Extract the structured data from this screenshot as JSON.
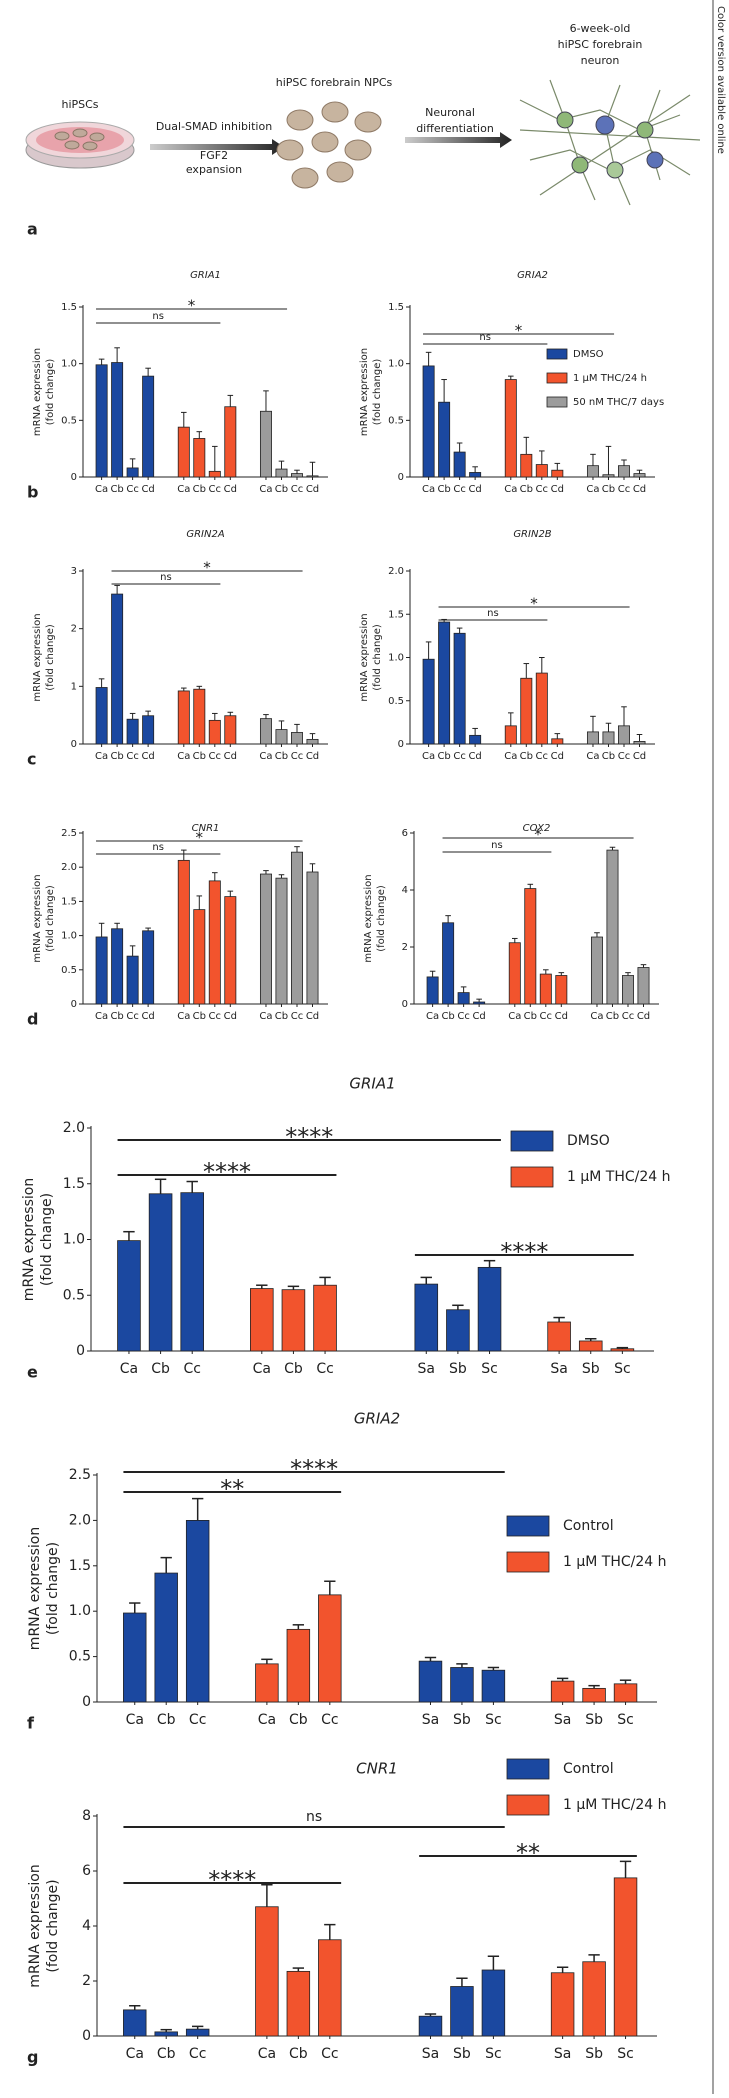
{
  "side_note": "Color version available online",
  "diagram": {
    "panel": "a",
    "stem_cells": "hiPSCs",
    "step1_line1": "Dual-SMAD inhibition",
    "step1_line2": "FGF2",
    "step1_line3": "expansion",
    "npcs": "hiPSC forebrain NPCs",
    "step2_line1": "Neuronal",
    "step2_line2": "differentiation",
    "neuron_line1": "6-week-old",
    "neuron_line2": "hiPSC forebrain",
    "neuron_line3": "neuron"
  },
  "chart_data": [
    {
      "type": "bar",
      "panel": "b",
      "title": "GRIA1",
      "y_label": [
        "mRNA expression",
        "(fold change)"
      ],
      "category_groups": [
        [
          "Ca",
          "Cb",
          "Cc",
          "Cd"
        ]
      ],
      "series": [
        {
          "name": "DMSO",
          "color": "#1b48a0",
          "values": [
            [
              0.99,
              1.01,
              0.08,
              0.89
            ]
          ],
          "errors": [
            [
              0.05,
              0.13,
              0.08,
              0.07
            ]
          ]
        },
        {
          "name": "1 μM THC/24 h",
          "color": "#f2542d",
          "values": [
            [
              0.44,
              0.34,
              0.05,
              0.62
            ]
          ],
          "errors": [
            [
              0.13,
              0.06,
              0.22,
              0.1
            ]
          ]
        },
        {
          "name": "50 nM THC/7 days",
          "color": "#9c9c9c",
          "values": [
            [
              0.58,
              0.07,
              0.03,
              0.01
            ]
          ],
          "errors": [
            [
              0.18,
              0.07,
              0.03,
              0.12
            ]
          ]
        }
      ],
      "ylim": [
        0,
        1.5
      ],
      "yticks": [
        0,
        0.5,
        {
          "value": 1,
          "label": "1.0"
        },
        1.5
      ],
      "brackets": [
        "ns",
        "*"
      ],
      "legend": false
    },
    {
      "type": "bar",
      "title": "GRIA2",
      "y_label": [
        "mRNA expression",
        "(fold change)"
      ],
      "category_groups": [
        [
          "Ca",
          "Cb",
          "Cc",
          "Cd"
        ]
      ],
      "series": [
        {
          "name": "DMSO",
          "color": "#1b48a0",
          "values": [
            [
              0.98,
              0.66,
              0.22,
              0.04
            ]
          ],
          "errors": [
            [
              0.12,
              0.2,
              0.08,
              0.05
            ]
          ]
        },
        {
          "name": "1 μM THC/24 h",
          "color": "#f2542d",
          "values": [
            [
              0.86,
              0.2,
              0.11,
              0.06
            ]
          ],
          "errors": [
            [
              0.03,
              0.15,
              0.12,
              0.06
            ]
          ]
        },
        {
          "name": "50 nM THC/7 days",
          "color": "#9c9c9c",
          "values": [
            [
              0.1,
              0.02,
              0.1,
              0.03
            ]
          ],
          "errors": [
            [
              0.1,
              0.25,
              0.05,
              0.03
            ]
          ]
        }
      ],
      "ylim": [
        0,
        1.5
      ],
      "yticks": [
        0,
        0.5,
        {
          "value": 1,
          "label": "1.0"
        },
        1.5
      ],
      "brackets": [
        "ns",
        "*"
      ],
      "legend": true
    },
    {
      "type": "bar",
      "panel": "c",
      "title": "GRIN2A",
      "y_label": [
        "mRNA expression",
        "(fold change)"
      ],
      "category_groups": [
        [
          "Ca",
          "Cb",
          "Cc",
          "Cd"
        ]
      ],
      "series": [
        {
          "name": "DMSO",
          "color": "#1b48a0",
          "values": [
            [
              0.98,
              2.6,
              0.43,
              0.49
            ]
          ],
          "errors": [
            [
              0.15,
              0.15,
              0.1,
              0.08
            ]
          ]
        },
        {
          "name": "1 μM THC/24 h",
          "color": "#f2542d",
          "values": [
            [
              0.92,
              0.95,
              0.41,
              0.49
            ]
          ],
          "errors": [
            [
              0.05,
              0.05,
              0.12,
              0.06
            ]
          ]
        },
        {
          "name": "50 nM THC/7 days",
          "color": "#9c9c9c",
          "values": [
            [
              0.44,
              0.25,
              0.2,
              0.08
            ]
          ],
          "errors": [
            [
              0.07,
              0.15,
              0.14,
              0.1
            ]
          ]
        }
      ],
      "ylim": [
        0,
        3
      ],
      "yticks": [
        0,
        1,
        2,
        3
      ],
      "brackets": [
        "ns",
        "*"
      ],
      "legend": false
    },
    {
      "type": "bar",
      "title": "GRIN2B",
      "y_label": [
        "mRNA expression",
        "(fold change)"
      ],
      "category_groups": [
        [
          "Ca",
          "Cb",
          "Cc",
          "Cd"
        ]
      ],
      "series": [
        {
          "name": "DMSO",
          "color": "#1b48a0",
          "values": [
            [
              0.98,
              1.41,
              1.28,
              0.1
            ]
          ],
          "errors": [
            [
              0.2,
              0.03,
              0.06,
              0.08
            ]
          ]
        },
        {
          "name": "1 μM THC/24 h",
          "color": "#f2542d",
          "values": [
            [
              0.21,
              0.76,
              0.82,
              0.06
            ]
          ],
          "errors": [
            [
              0.15,
              0.17,
              0.18,
              0.06
            ]
          ]
        },
        {
          "name": "50 nM THC/7 days",
          "color": "#9c9c9c",
          "values": [
            [
              0.14,
              0.14,
              0.21,
              0.03
            ]
          ],
          "errors": [
            [
              0.18,
              0.1,
              0.22,
              0.08
            ]
          ]
        }
      ],
      "ylim": [
        0,
        2
      ],
      "yticks": [
        0,
        0.5,
        {
          "value": 1,
          "label": "1.0"
        },
        1.5,
        {
          "value": 2,
          "label": "2.0"
        }
      ],
      "brackets": [
        "ns",
        "*"
      ],
      "legend": false
    },
    {
      "type": "bar",
      "panel": "d",
      "title": "CNR1",
      "y_label": [
        "mRNA expression",
        "(fold change)"
      ],
      "category_groups": [
        [
          "Ca",
          "Cb",
          "Cc",
          "Cd"
        ]
      ],
      "series": [
        {
          "name": "DMSO",
          "color": "#1b48a0",
          "values": [
            [
              0.98,
              1.1,
              0.7,
              1.07
            ]
          ],
          "errors": [
            [
              0.2,
              0.08,
              0.15,
              0.04
            ]
          ]
        },
        {
          "name": "1 μM THC/24 h",
          "color": "#f2542d",
          "values": [
            [
              2.1,
              1.38,
              1.8,
              1.57
            ]
          ],
          "errors": [
            [
              0.15,
              0.2,
              0.12,
              0.08
            ]
          ]
        },
        {
          "name": "50 nM THC/7 days",
          "color": "#9c9c9c",
          "values": [
            [
              1.9,
              1.84,
              2.22,
              1.93
            ]
          ],
          "errors": [
            [
              0.05,
              0.05,
              0.08,
              0.12
            ]
          ]
        }
      ],
      "ylim": [
        0,
        2.5
      ],
      "yticks": [
        0,
        0.5,
        {
          "value": 1,
          "label": "1.0"
        },
        1.5,
        {
          "value": 2,
          "label": "2.0"
        },
        2.5
      ],
      "brackets": [
        "ns",
        "*"
      ],
      "legend": false
    },
    {
      "type": "bar",
      "title": "COX2",
      "y_label": [
        "mRNA expression",
        "(fold change)"
      ],
      "category_groups": [
        [
          "Ca",
          "Cb",
          "Cc",
          "Cd"
        ]
      ],
      "series": [
        {
          "name": "DMSO",
          "color": "#1b48a0",
          "values": [
            [
              0.95,
              2.85,
              0.4,
              0.07
            ]
          ],
          "errors": [
            [
              0.2,
              0.25,
              0.2,
              0.1
            ]
          ]
        },
        {
          "name": "1 μM THC/24 h",
          "color": "#f2542d",
          "values": [
            [
              2.15,
              4.05,
              1.05,
              1.0
            ]
          ],
          "errors": [
            [
              0.15,
              0.15,
              0.15,
              0.1
            ]
          ]
        },
        {
          "name": "50 nM THC/7 days",
          "color": "#9c9c9c",
          "values": [
            [
              2.35,
              5.4,
              1.0,
              1.28
            ]
          ],
          "errors": [
            [
              0.15,
              0.1,
              0.1,
              0.1
            ]
          ]
        }
      ],
      "ylim": [
        0,
        6
      ],
      "yticks": [
        0,
        2,
        4,
        6
      ],
      "brackets": [
        "ns",
        "*"
      ],
      "legend": false
    },
    {
      "type": "bar",
      "panel": "e",
      "title": "GRIA1",
      "y_label": [
        "mRNA expression",
        "(fold change)"
      ],
      "category_groups": [
        [
          "Ca",
          "Cb",
          "Cc"
        ],
        [
          "Sa",
          "Sb",
          "Sc"
        ]
      ],
      "series": [
        {
          "name": "DMSO",
          "color": "#1b48a0",
          "values": [
            [
              0.99,
              1.41,
              1.42
            ],
            [
              0.6,
              0.37,
              0.75
            ]
          ],
          "errors": [
            [
              0.08,
              0.13,
              0.1
            ],
            [
              0.06,
              0.04,
              0.06
            ]
          ]
        },
        {
          "name": "1 μM THC/24 h",
          "color": "#f2542d",
          "values": [
            [
              0.56,
              0.55,
              0.59
            ],
            [
              0.26,
              0.09,
              0.02
            ]
          ],
          "errors": [
            [
              0.03,
              0.03,
              0.07
            ],
            [
              0.04,
              0.02,
              0.01
            ]
          ]
        }
      ],
      "ylim": [
        0,
        2
      ],
      "yticks": [
        0,
        0.5,
        {
          "value": 1,
          "label": "1.0"
        },
        1.5,
        {
          "value": 2,
          "label": "2.0"
        }
      ],
      "brackets": [
        "****",
        "****",
        "****"
      ],
      "legend": true
    },
    {
      "type": "bar",
      "panel": "f",
      "title": "GRIA2",
      "y_label": [
        "mRNA expression",
        "(fold change)"
      ],
      "category_groups": [
        [
          "Ca",
          "Cb",
          "Cc"
        ],
        [
          "Sa",
          "Sb",
          "Sc"
        ]
      ],
      "series": [
        {
          "name": "Control",
          "color": "#1b48a0",
          "values": [
            [
              0.98,
              1.42,
              2.0
            ],
            [
              0.45,
              0.38,
              0.35
            ]
          ],
          "errors": [
            [
              0.11,
              0.17,
              0.24
            ],
            [
              0.04,
              0.04,
              0.03
            ]
          ]
        },
        {
          "name": "1 μM THC/24 h",
          "color": "#f2542d",
          "values": [
            [
              0.42,
              0.8,
              1.18
            ],
            [
              0.23,
              0.15,
              0.2
            ]
          ],
          "errors": [
            [
              0.05,
              0.05,
              0.15
            ],
            [
              0.03,
              0.03,
              0.04
            ]
          ]
        }
      ],
      "ylim": [
        0,
        2.5
      ],
      "yticks": [
        0,
        0.5,
        {
          "value": 1,
          "label": "1.0"
        },
        1.5,
        {
          "value": 2,
          "label": "2.0"
        },
        2.5
      ],
      "brackets": [
        "****",
        "**"
      ],
      "legend": true
    },
    {
      "type": "bar",
      "panel": "g",
      "title": "CNR1",
      "y_label": [
        "mRNA expression",
        "(fold change)"
      ],
      "category_groups": [
        [
          "Ca",
          "Cb",
          "Cc"
        ],
        [
          "Sa",
          "Sb",
          "Sc"
        ]
      ],
      "series": [
        {
          "name": "Control",
          "color": "#1b48a0",
          "values": [
            [
              0.95,
              0.15,
              0.25
            ],
            [
              0.72,
              1.8,
              2.4
            ]
          ],
          "errors": [
            [
              0.15,
              0.08,
              0.1
            ],
            [
              0.08,
              0.3,
              0.5
            ]
          ]
        },
        {
          "name": "1 μM THC/24 h",
          "color": "#f2542d",
          "values": [
            [
              4.7,
              2.35,
              3.5
            ],
            [
              2.3,
              2.7,
              5.75
            ]
          ],
          "errors": [
            [
              0.8,
              0.12,
              0.55
            ],
            [
              0.2,
              0.25,
              0.6
            ]
          ]
        }
      ],
      "ylim": [
        0,
        8
      ],
      "yticks": [
        0,
        2,
        4,
        6,
        8
      ],
      "brackets": [
        "ns",
        "****",
        "**"
      ],
      "legend": true
    }
  ]
}
